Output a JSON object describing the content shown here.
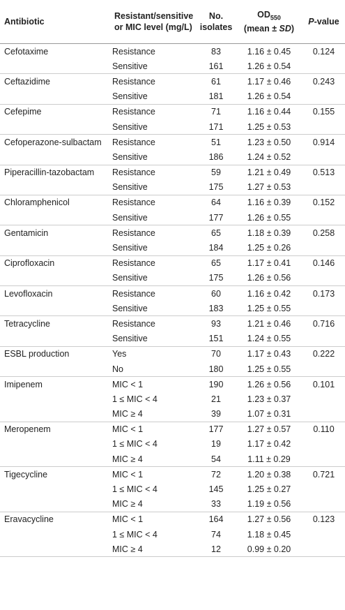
{
  "table": {
    "columns": {
      "antibiotic": "Antibiotic",
      "resistance": [
        "Resistant/sensitive",
        "or MIC level (mg/L)"
      ],
      "isolates": [
        "No.",
        "isolates"
      ],
      "od": [
        "OD",
        "550",
        "(mean ± ",
        "SD",
        ")"
      ],
      "p": [
        "P",
        "-value"
      ]
    },
    "groups": [
      {
        "antibiotic": "Cefotaxime",
        "p": "0.124",
        "rows": [
          [
            "Resistance",
            83,
            "1.16 ± 0.45"
          ],
          [
            "Sensitive",
            161,
            "1.26 ± 0.54"
          ]
        ]
      },
      {
        "antibiotic": "Ceftazidime",
        "p": "0.243",
        "rows": [
          [
            "Resistance",
            61,
            "1.17 ± 0.46"
          ],
          [
            "Sensitive",
            181,
            "1.26 ± 0.54"
          ]
        ]
      },
      {
        "antibiotic": "Cefepime",
        "p": "0.155",
        "rows": [
          [
            "Resistance",
            71,
            "1.16 ± 0.44"
          ],
          [
            "Sensitive",
            171,
            "1.25 ± 0.53"
          ]
        ]
      },
      {
        "antibiotic": "Cefoperazone-sulbactam",
        "p": "0.914",
        "rows": [
          [
            "Resistance",
            51,
            "1.23 ± 0.50"
          ],
          [
            "Sensitive",
            186,
            "1.24 ± 0.52"
          ]
        ]
      },
      {
        "antibiotic": "Piperacillin-tazobactam",
        "p": "0.513",
        "rows": [
          [
            "Resistance",
            59,
            "1.21 ± 0.49"
          ],
          [
            "Sensitive",
            175,
            "1.27 ± 0.53"
          ]
        ]
      },
      {
        "antibiotic": "Chloramphenicol",
        "p": "0.152",
        "rows": [
          [
            "Resistance",
            64,
            "1.16 ± 0.39"
          ],
          [
            "Sensitive",
            177,
            "1.26 ± 0.55"
          ]
        ]
      },
      {
        "antibiotic": "Gentamicin",
        "p": "0.258",
        "rows": [
          [
            "Resistance",
            65,
            "1.18 ± 0.39"
          ],
          [
            "Sensitive",
            184,
            "1.25 ± 0.26"
          ]
        ]
      },
      {
        "antibiotic": "Ciprofloxacin",
        "p": "0.146",
        "rows": [
          [
            "Resistance",
            65,
            "1.17 ± 0.41"
          ],
          [
            "Sensitive",
            175,
            "1.26 ± 0.56"
          ]
        ]
      },
      {
        "antibiotic": "Levofloxacin",
        "p": "0.173",
        "rows": [
          [
            "Resistance",
            60,
            "1.16 ± 0.42"
          ],
          [
            "Sensitive",
            183,
            "1.25 ± 0.55"
          ]
        ]
      },
      {
        "antibiotic": "Tetracycline",
        "p": "0.716",
        "rows": [
          [
            "Resistance",
            93,
            "1.21 ± 0.46"
          ],
          [
            "Sensitive",
            151,
            "1.24 ± 0.55"
          ]
        ]
      },
      {
        "antibiotic": "ESBL production",
        "p": "0.222",
        "rows": [
          [
            "Yes",
            70,
            "1.17 ± 0.43"
          ],
          [
            "No",
            180,
            "1.25 ± 0.55"
          ]
        ]
      },
      {
        "antibiotic": "Imipenem",
        "p": "0.101",
        "rows": [
          [
            "MIC < 1",
            190,
            "1.26 ± 0.56"
          ],
          [
            "1 ≤ MIC < 4",
            21,
            "1.23 ± 0.37"
          ],
          [
            "MIC ≥ 4",
            39,
            "1.07 ± 0.31"
          ]
        ]
      },
      {
        "antibiotic": "Meropenem",
        "p": "0.110",
        "rows": [
          [
            "MIC < 1",
            177,
            "1.27 ± 0.57"
          ],
          [
            "1 ≤ MIC < 4",
            19,
            "1.17 ± 0.42"
          ],
          [
            "MIC ≥ 4",
            54,
            "1.11 ± 0.29"
          ]
        ]
      },
      {
        "antibiotic": "Tigecycline",
        "p": "0.721",
        "rows": [
          [
            "MIC < 1",
            72,
            "1.20 ± 0.38"
          ],
          [
            "1 ≤ MIC < 4",
            145,
            "1.25 ± 0.27"
          ],
          [
            "MIC ≥ 4",
            33,
            "1.19 ± 0.56"
          ]
        ]
      },
      {
        "antibiotic": "Eravacycline",
        "p": "0.123",
        "rows": [
          [
            "MIC < 1",
            164,
            "1.27 ± 0.56"
          ],
          [
            "1 ≤ MIC < 4",
            74,
            "1.18 ± 0.45"
          ],
          [
            "MIC ≥ 4",
            12,
            "0.99 ± 0.20"
          ]
        ]
      }
    ]
  }
}
